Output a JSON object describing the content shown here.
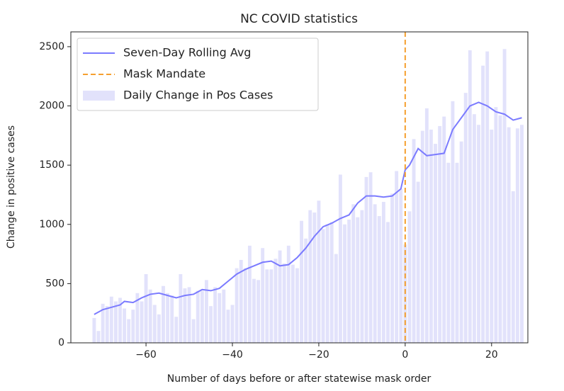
{
  "chart_data": {
    "type": "bar",
    "title": "NC COVID statistics",
    "x_label": "Number of days before or after statewise mask order",
    "y_label": "Change in positive cases",
    "x": [
      -72,
      -71,
      -70,
      -69,
      -68,
      -67,
      -66,
      -65,
      -64,
      -63,
      -62,
      -61,
      -60,
      -59,
      -58,
      -57,
      -56,
      -55,
      -54,
      -53,
      -52,
      -51,
      -50,
      -49,
      -48,
      -47,
      -46,
      -45,
      -44,
      -43,
      -42,
      -41,
      -40,
      -39,
      -38,
      -37,
      -36,
      -35,
      -34,
      -33,
      -32,
      -31,
      -30,
      -29,
      -28,
      -27,
      -26,
      -25,
      -24,
      -23,
      -22,
      -21,
      -20,
      -19,
      -18,
      -17,
      -16,
      -15,
      -14,
      -13,
      -12,
      -11,
      -10,
      -9,
      -8,
      -7,
      -6,
      -5,
      -4,
      -3,
      -2,
      -1,
      0,
      1,
      2,
      3,
      4,
      5,
      6,
      7,
      8,
      9,
      10,
      11,
      12,
      13,
      14,
      15,
      16,
      17,
      18,
      19,
      20,
      21,
      22,
      23,
      24,
      25,
      26,
      27
    ],
    "series": [
      {
        "name": "Daily Change in Pos Cases",
        "type": "bar",
        "color": "#e2e2fb",
        "values": [
          210,
          100,
          330,
          310,
          390,
          350,
          380,
          290,
          200,
          280,
          420,
          350,
          580,
          450,
          320,
          240,
          480,
          420,
          400,
          220,
          580,
          460,
          470,
          200,
          440,
          440,
          530,
          310,
          470,
          420,
          450,
          280,
          320,
          630,
          700,
          630,
          820,
          540,
          530,
          800,
          620,
          620,
          710,
          780,
          670,
          820,
          660,
          630,
          1030,
          880,
          1120,
          1100,
          1200,
          960,
          1000,
          1020,
          750,
          1420,
          1000,
          1040,
          1170,
          1060,
          1120,
          1400,
          1440,
          1170,
          1070,
          1190,
          1020,
          1260,
          1450,
          1300,
          830,
          1110,
          1720,
          1360,
          1790,
          1980,
          1800,
          1680,
          1830,
          1910,
          1520,
          2040,
          1520,
          1700,
          2110,
          2470,
          1930,
          1840,
          2340,
          2460,
          1800,
          1990,
          1920,
          2480,
          1820,
          1280,
          1810,
          1840
        ]
      },
      {
        "name": "Seven-Day Rolling Avg",
        "type": "line",
        "color": "#7b7bff",
        "x": [
          -72,
          -70,
          -68,
          -66,
          -65,
          -63,
          -61,
          -59,
          -57,
          -55,
          -53,
          -51,
          -49,
          -47,
          -45,
          -43,
          -41,
          -39,
          -37,
          -35,
          -33,
          -31,
          -29,
          -27,
          -25,
          -23,
          -21,
          -19,
          -17,
          -15,
          -13,
          -11,
          -9,
          -7,
          -5,
          -3,
          -1,
          0,
          1,
          3,
          5,
          7,
          9,
          11,
          13,
          15,
          17,
          19,
          21,
          23,
          25,
          27
        ],
        "values": [
          240,
          280,
          300,
          320,
          350,
          340,
          380,
          410,
          420,
          400,
          380,
          400,
          410,
          450,
          440,
          460,
          520,
          580,
          620,
          650,
          680,
          690,
          650,
          660,
          720,
          800,
          900,
          980,
          1010,
          1050,
          1080,
          1180,
          1240,
          1240,
          1230,
          1240,
          1300,
          1460,
          1500,
          1640,
          1580,
          1590,
          1600,
          1800,
          1900,
          2000,
          2030,
          2000,
          1950,
          1930,
          1880,
          1900
        ]
      }
    ],
    "vlines": [
      {
        "name": "Mask Mandate",
        "x": 0,
        "color": "#f5a030"
      }
    ],
    "xlim": [
      -77.4,
      28.4
    ],
    "ylim": [
      0,
      2625
    ],
    "xticks": [
      {
        "value": -60,
        "label": "−60"
      },
      {
        "value": -40,
        "label": "−40"
      },
      {
        "value": -20,
        "label": "−20"
      },
      0,
      20
    ],
    "yticks": [
      0,
      500,
      1000,
      1500,
      2000,
      2500
    ],
    "legend": "upper left"
  }
}
